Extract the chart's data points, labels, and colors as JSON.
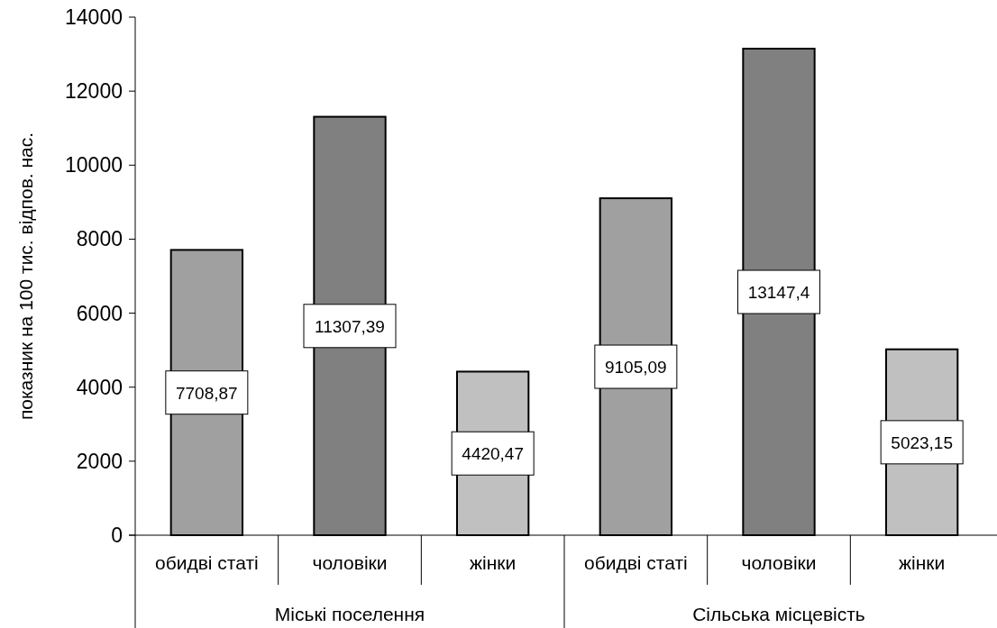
{
  "chart_data": {
    "type": "bar",
    "ylabel": "показник на 100 тис. відпов. нас.",
    "categories": [
      "обидві статі",
      "чоловіки",
      "жінки",
      "обидві статі",
      "чоловіки",
      "жінки"
    ],
    "values": [
      7708.87,
      11307.39,
      4420.47,
      9105.09,
      13147.4,
      5023.15
    ],
    "colors": [
      "#a0a0a0",
      "#808080",
      "#c0c0c0",
      "#a0a0a0",
      "#808080",
      "#c0c0c0"
    ],
    "value_labels": [
      "7708,87",
      "11307,39",
      "4420,47",
      "9105,09",
      "13147,4",
      "5023,15"
    ],
    "ylim": [
      0,
      14000
    ],
    "yticks": [
      0,
      2000,
      4000,
      6000,
      8000,
      10000,
      12000,
      14000
    ],
    "annotations": [
      "Міські поселення",
      "Сільська місцевість"
    ]
  }
}
